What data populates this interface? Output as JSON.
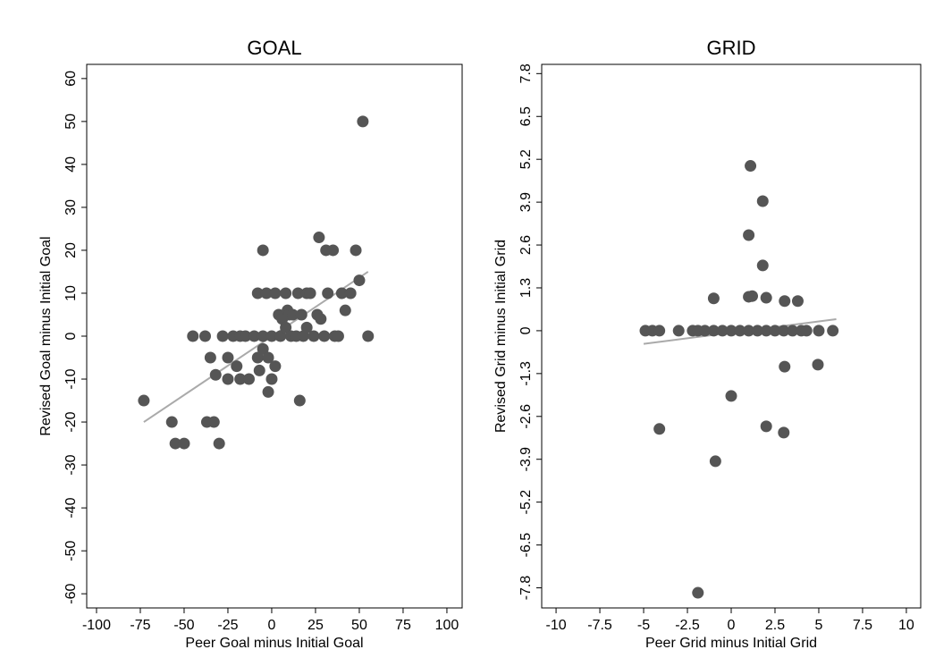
{
  "chart_data": [
    {
      "type": "scatter",
      "title": "GOAL",
      "x_label": "Peer Goal minus Initial Goal",
      "y_label": "Revised Goal minus Initial Goal",
      "color": "#555555",
      "x": [
        -73,
        -57,
        -55,
        -50,
        -45,
        -38,
        -37,
        -35,
        -33,
        -32,
        -30,
        -28,
        -25,
        -25,
        -22,
        -20,
        -18,
        -18,
        -15,
        -13,
        -10,
        -8,
        -7,
        -8,
        -5,
        -5,
        -5,
        -3,
        -2,
        -2,
        0,
        0,
        2,
        2,
        4,
        5,
        6,
        8,
        8,
        9,
        10,
        11,
        12,
        14,
        15,
        16,
        17,
        18,
        20,
        20,
        22,
        24,
        26,
        27,
        28,
        30,
        31,
        32,
        35,
        36,
        38,
        40,
        42,
        45,
        48,
        50,
        52,
        55
      ],
      "values": [
        -15,
        -20,
        -25,
        -25,
        0,
        0,
        -20,
        -5,
        -20,
        -9,
        -25,
        0,
        -10,
        -5,
        0,
        -7,
        0,
        -10,
        0,
        -10,
        0,
        -5,
        -8,
        10,
        20,
        -3,
        0,
        10,
        -5,
        -13,
        -10,
        0,
        10,
        -7,
        5,
        0,
        4,
        10,
        2,
        6,
        5,
        0,
        5,
        0,
        10,
        -15,
        5,
        0,
        10,
        2,
        10,
        0,
        5,
        23,
        4,
        0,
        20,
        10,
        20,
        0,
        0,
        10,
        6,
        10,
        20,
        13,
        50,
        0
      ],
      "fit_line": {
        "x": [
          -73,
          55
        ],
        "values": [
          -20,
          15
        ],
        "color": "#aaaaaa"
      },
      "xlim": [
        -105.6,
        108.7
      ],
      "xticks": [
        -100,
        -75,
        -50,
        -25,
        0,
        25,
        50,
        75,
        100
      ],
      "ylim": [
        -63.3,
        63.3
      ],
      "yticks": [
        -60,
        -50,
        -40,
        -30,
        -20,
        -10,
        0,
        10,
        20,
        30,
        40,
        50,
        60
      ]
    },
    {
      "type": "scatter",
      "title": "GRID",
      "x_label": "Peer Grid minus Initial Grid",
      "y_label": "Revised Grid minus Initial Grid",
      "color": "#555555",
      "x": [
        -4.9,
        -4.5,
        -4.1,
        -3.0,
        -2.2,
        -1.9,
        -1.5,
        -1.0,
        -0.5,
        0,
        0.5,
        1.0,
        1.5,
        2.0,
        2.5,
        3.0,
        3.5,
        4.0,
        4.3,
        5.0,
        5.8,
        1.1,
        1.8,
        1.0,
        1.8,
        -1.0,
        1.0,
        1.2,
        2.0,
        3.05,
        3.8,
        3.05,
        4.95,
        0,
        -4.1,
        2.0,
        3.0,
        -0.9,
        -1.9
      ],
      "values": [
        0,
        0,
        0,
        0,
        0,
        0,
        0,
        0,
        0,
        0,
        0,
        0,
        0,
        0,
        0,
        0,
        0,
        0,
        0,
        0,
        0,
        5.0,
        3.93,
        2.9,
        1.98,
        0.98,
        1.03,
        1.05,
        1.0,
        0.9,
        0.9,
        -1.09,
        -1.03,
        -1.98,
        -2.98,
        -2.9,
        -3.09,
        -3.96,
        -7.95
      ],
      "fit_line": {
        "x": [
          -5,
          6
        ],
        "values": [
          -0.4,
          0.35
        ],
        "color": "#aaaaaa"
      },
      "xlim": [
        -10.82,
        10.82
      ],
      "xticks": [
        -10,
        -7.5,
        -5,
        -2.5,
        0,
        2.5,
        5,
        7.5,
        10
      ],
      "ylim": [
        -8.41,
        8.08
      ],
      "yticks": [
        -7.8,
        -6.5,
        -5.2,
        -3.9,
        -2.6,
        -1.3,
        0,
        1.3,
        2.6,
        3.9,
        5.2,
        6.5,
        7.8
      ]
    }
  ]
}
